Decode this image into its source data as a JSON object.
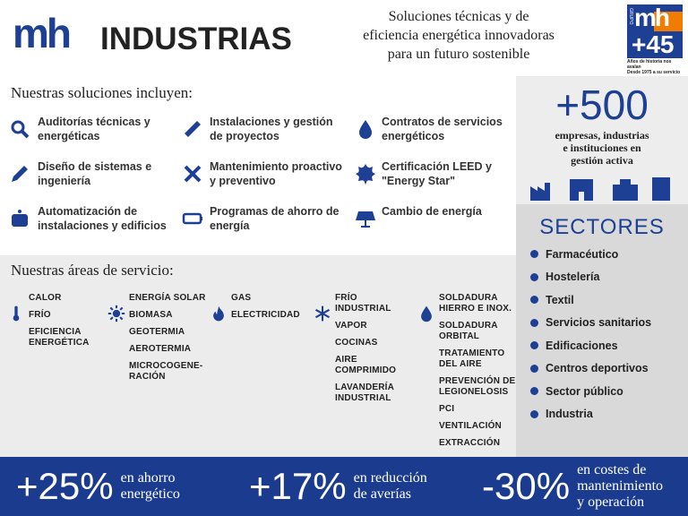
{
  "header": {
    "brand_mark": "mh",
    "brand": "INDUSTRIAS",
    "tagline": "Soluciones técnicas y de\neficiencia energética innovadoras\npara un futuro sostenible",
    "badge": {
      "group": "GRUPO",
      "mark": "mh",
      "years": "+45",
      "note": "Años de historia nos avalan\nDesde 1975 a su servicio"
    }
  },
  "solutions": {
    "title": "Nuestras soluciones incluyen:",
    "items": [
      "Auditorías técnicas y\nenergéticas",
      "Instalaciones y gestión\nde proyectos",
      "Contratos de servicios\nenergéticos",
      "Diseño de sistemas e\ningeniería",
      "Mantenimiento proactivo\ny preventivo",
      "Certificación LEED y\n\"Energy Star\"",
      "Automatización de\ninstalaciones y edificios",
      "Programas de ahorro de\nenergía",
      "Cambio de energía"
    ]
  },
  "areas": {
    "title": "Nuestras áreas de servicio:",
    "groups": [
      {
        "items": [
          "CALOR",
          "FRÍO",
          "EFICIENCIA\nENERGÉTICA"
        ]
      },
      {
        "items": [
          "ENERGÍA SOLAR",
          "BIOMASA",
          "GEOTERMIA",
          "AEROTERMIA",
          "MICROCOGENE-\nRACIÓN"
        ]
      },
      {
        "items": [
          "GAS",
          "ELECTRICIDAD"
        ]
      },
      {
        "items": [
          "FRÍO\nINDUSTRIAL",
          "VAPOR",
          "COCINAS",
          "AIRE\nCOMPRIMIDO",
          "LAVANDERÍA\nINDUSTRIAL"
        ]
      },
      {
        "items": [
          "SOLDADURA\nHIERRO E INOX.",
          "SOLDADURA\nORBITAL",
          "TRATAMIENTO\nDEL AIRE",
          "PREVENCIÓN DE\nLEGIONELOSIS",
          "PCI",
          "VENTILACIÓN",
          "EXTRACCIÓN"
        ]
      }
    ]
  },
  "clients": {
    "value": "+500",
    "text": "empresas, industrias\ne instituciones en\ngestión activa"
  },
  "sectors": {
    "title": "SECTORES",
    "items": [
      "Farmacéutico",
      "Hostelería",
      "Textil",
      "Servicios sanitarios",
      "Edificaciones",
      "Centros deportivos",
      "Sector público",
      "Industria"
    ]
  },
  "stats": [
    {
      "value": "+25%",
      "text": "en ahorro\nenergético"
    },
    {
      "value": "+17%",
      "text": "en reducción\nde averías"
    },
    {
      "value": "-30%",
      "text": "en costes de\nmantenimiento\ny operación"
    }
  ]
}
